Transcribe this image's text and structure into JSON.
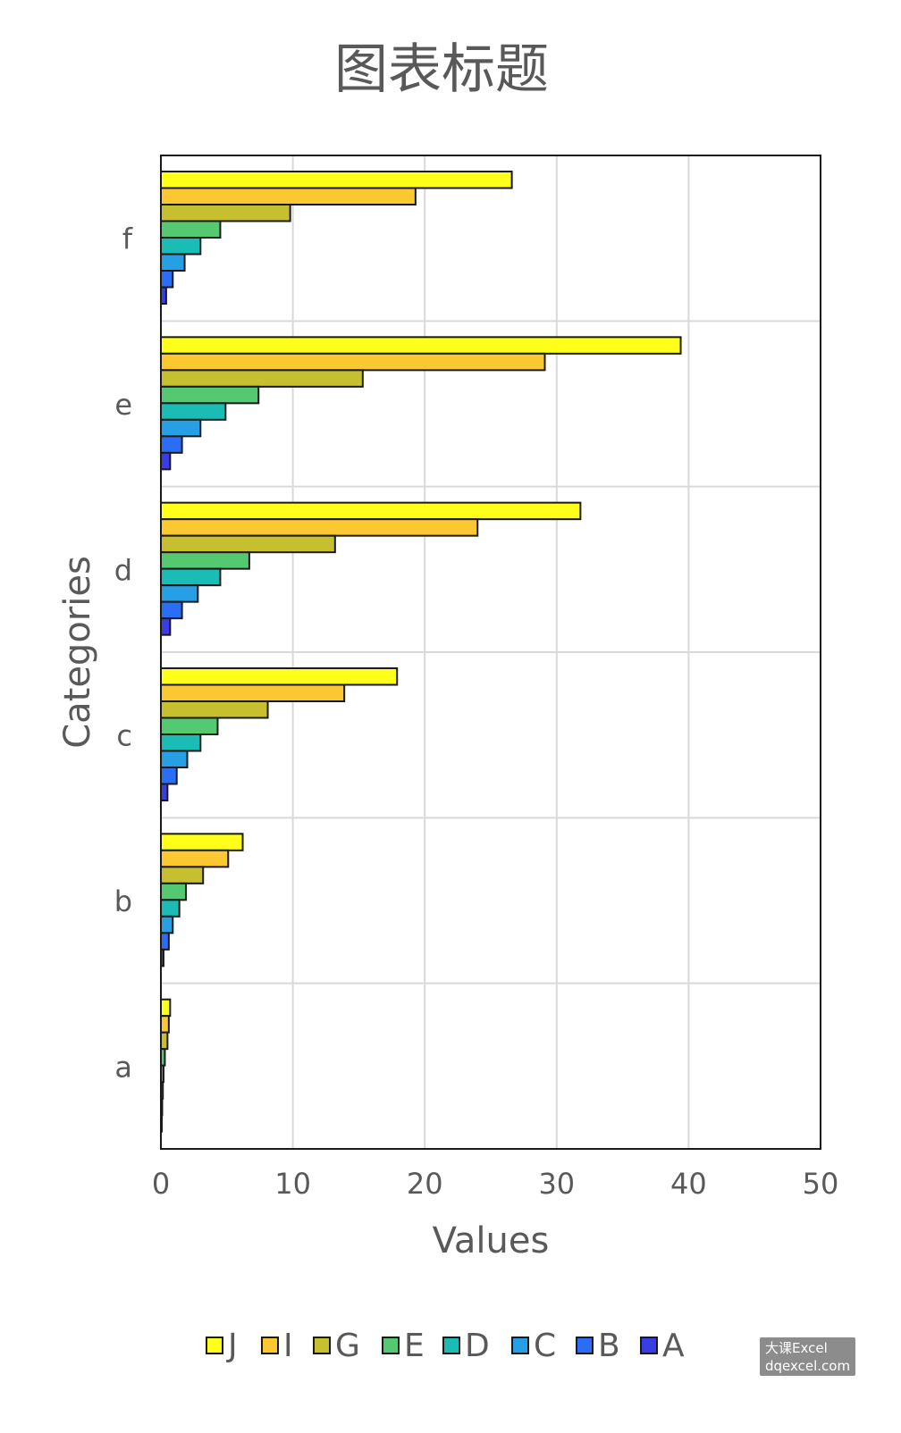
{
  "chart_data": {
    "type": "bar",
    "orientation": "horizontal",
    "title": "图表标题",
    "xlabel": "Values",
    "ylabel": "Categories",
    "xlim": [
      0,
      50
    ],
    "xticks": [
      "0",
      "10",
      "20",
      "30",
      "40",
      "50"
    ],
    "categories": [
      "a",
      "b",
      "c",
      "d",
      "e",
      "f"
    ],
    "grid": true,
    "legend_position": "bottom",
    "series": [
      {
        "name": "J",
        "color": "#ffff1a",
        "values": [
          0.7,
          6.2,
          17.9,
          31.8,
          39.4,
          26.6
        ]
      },
      {
        "name": "I",
        "color": "#fcc832",
        "values": [
          0.6,
          5.1,
          13.9,
          24.0,
          29.1,
          19.3
        ]
      },
      {
        "name": "G",
        "color": "#c6bf30",
        "values": [
          0.5,
          3.2,
          8.1,
          13.2,
          15.3,
          9.8
        ]
      },
      {
        "name": "E",
        "color": "#54c971",
        "values": [
          0.3,
          1.9,
          4.3,
          6.7,
          7.4,
          4.5
        ]
      },
      {
        "name": "D",
        "color": "#1bbbb6",
        "values": [
          0.2,
          1.4,
          3.0,
          4.5,
          4.9,
          3.0
        ]
      },
      {
        "name": "C",
        "color": "#269fe4",
        "values": [
          0.15,
          0.9,
          2.0,
          2.8,
          3.0,
          1.8
        ]
      },
      {
        "name": "B",
        "color": "#2a6ef8",
        "values": [
          0.1,
          0.6,
          1.2,
          1.6,
          1.6,
          0.9
        ]
      },
      {
        "name": "A",
        "color": "#3a3ce6",
        "values": [
          0.05,
          0.2,
          0.5,
          0.7,
          0.7,
          0.4
        ]
      }
    ]
  },
  "watermark": {
    "line1": "大课Excel",
    "line2": "dqexcel.com"
  }
}
